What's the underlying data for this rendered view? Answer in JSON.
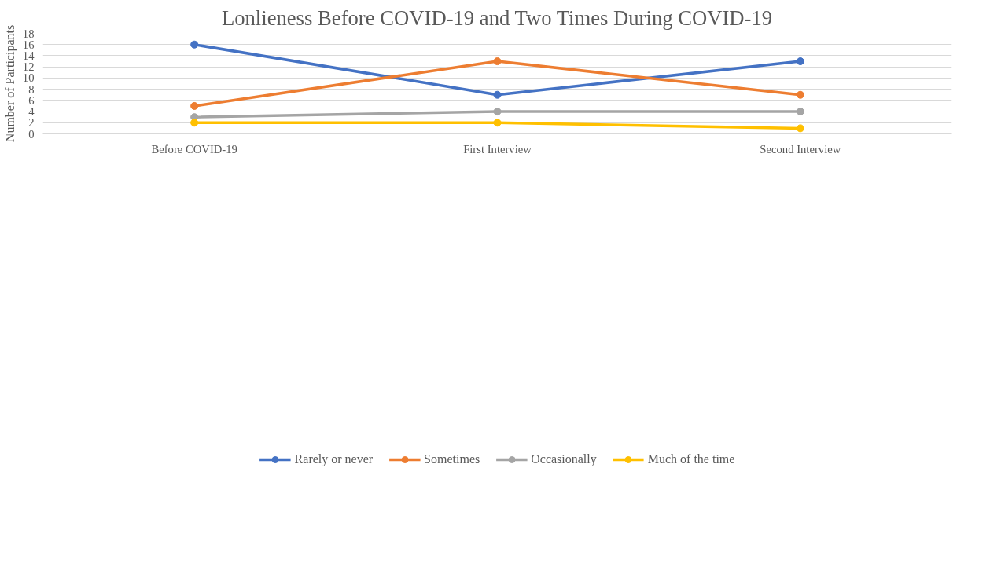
{
  "chart_data": {
    "type": "line",
    "title": "Lonlieness Before COVID-19 and Two Times During COVID-19",
    "ylabel": "Number of Participants",
    "categories": [
      "Before COVID-19",
      "First Interview",
      "Second Interview"
    ],
    "series": [
      {
        "name": "Rarely or never",
        "color": "#4472c4",
        "values": [
          16,
          7,
          13
        ]
      },
      {
        "name": "Sometimes",
        "color": "#ed7d31",
        "values": [
          5,
          13,
          7
        ]
      },
      {
        "name": "Occasionally",
        "color": "#a5a5a5",
        "values": [
          3,
          4,
          4
        ]
      },
      {
        "name": "Much of the time",
        "color": "#ffc000",
        "values": [
          2,
          2,
          1
        ]
      }
    ],
    "ylim": [
      0,
      18
    ],
    "yticks": [
      0,
      2,
      4,
      6,
      8,
      10,
      12,
      14,
      16,
      18
    ],
    "grid": "y",
    "legend": "bottom",
    "marker": "circle",
    "line_style": "solid"
  }
}
